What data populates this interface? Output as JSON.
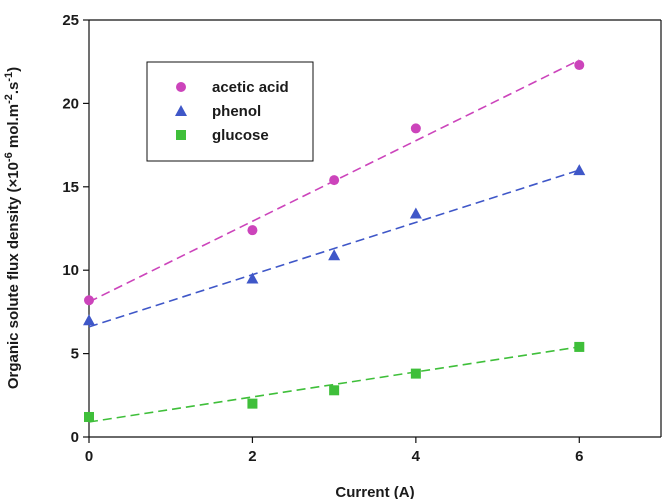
{
  "chart_data": {
    "type": "scatter",
    "xlabel": "Current (A)",
    "ylabel_main": "Organic solute flux density (×10",
    "ylabel_exp1": "-6",
    "ylabel_mid": " mol.m",
    "ylabel_exp2": "-2",
    "ylabel_mid2": ".s",
    "ylabel_exp3": "-1",
    "ylabel_end": ")",
    "xlim": [
      0,
      7
    ],
    "ylim": [
      0,
      25
    ],
    "xticks": [
      "0",
      "2",
      "4",
      "6"
    ],
    "yticks": [
      "0",
      "5",
      "10",
      "15",
      "20",
      "25"
    ],
    "grid": false,
    "legend_position": "top-left",
    "series": [
      {
        "name": "acetic acid",
        "marker": "circle",
        "color": "#cc44bb",
        "x": [
          0,
          2,
          3,
          4,
          6
        ],
        "y": [
          8.2,
          12.4,
          15.4,
          18.5,
          22.3
        ],
        "fit": [
          8.1,
          22.6
        ]
      },
      {
        "name": "phenol",
        "marker": "triangle",
        "color": "#3f57c8",
        "x": [
          0,
          2,
          3,
          4,
          6
        ],
        "y": [
          7.0,
          9.5,
          10.9,
          13.4,
          16.0
        ],
        "fit": [
          6.6,
          16.0
        ]
      },
      {
        "name": "glucose",
        "marker": "square",
        "color": "#3fbf3a",
        "x": [
          0,
          2,
          3,
          4,
          6
        ],
        "y": [
          1.2,
          2.0,
          2.8,
          3.8,
          5.4
        ],
        "fit": [
          0.9,
          5.4
        ]
      }
    ]
  }
}
